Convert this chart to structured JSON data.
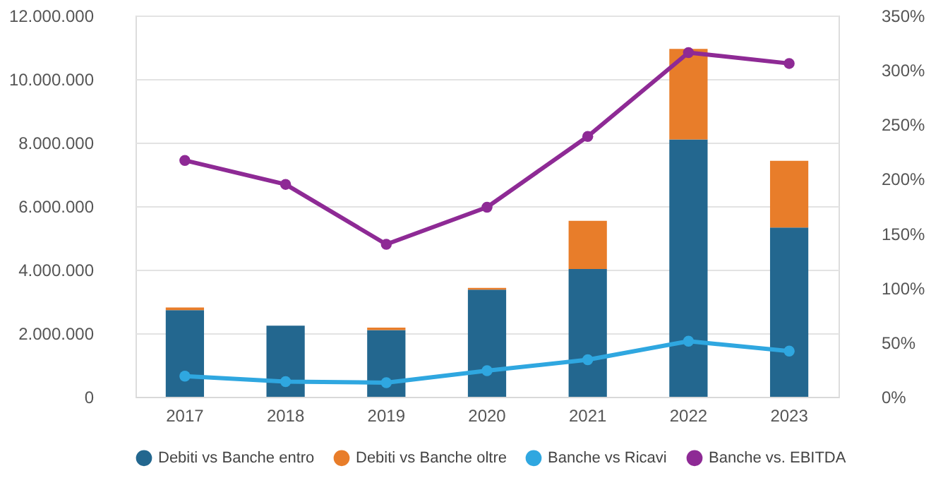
{
  "chart_data": {
    "type": "bar",
    "stacked": true,
    "categories": [
      "2017",
      "2018",
      "2019",
      "2020",
      "2021",
      "2022",
      "2023"
    ],
    "series": [
      {
        "name": "Debiti vs Banche entro",
        "color": "#23678f",
        "values": [
          2730000,
          2240000,
          2100000,
          3370000,
          4020000,
          8100000,
          5330000
        ]
      },
      {
        "name": "Debiti vs Banche oltre",
        "color": "#e87d2a",
        "values": [
          80000,
          0,
          80000,
          60000,
          1520000,
          2850000,
          2100000
        ]
      },
      {
        "name": "Banche vs Ricavi",
        "type": "line",
        "axis": "y2",
        "color": "#2fa7e0",
        "values": [
          19,
          14,
          13,
          24,
          34,
          51,
          42
        ]
      },
      {
        "name": "Banche vs. EBITDA",
        "type": "line",
        "axis": "y2",
        "color": "#8e2a95",
        "values": [
          217,
          195,
          140,
          174,
          239,
          316,
          306
        ]
      }
    ],
    "marker": "circle",
    "ylim": [
      0,
      12000000
    ],
    "yticks": [
      {
        "value": 0,
        "label": "0"
      },
      {
        "value": 2000000,
        "label": "2.000.000"
      },
      {
        "value": 4000000,
        "label": "4.000.000"
      },
      {
        "value": 6000000,
        "label": "6.000.000"
      },
      {
        "value": 8000000,
        "label": "8.000.000"
      },
      {
        "value": 10000000,
        "label": "10.000.000"
      },
      {
        "value": 12000000,
        "label": "12.000.000"
      }
    ],
    "y2lim": [
      0,
      350
    ],
    "y2ticks": [
      {
        "value": 0,
        "label": "0%"
      },
      {
        "value": 50,
        "label": "50%"
      },
      {
        "value": 100,
        "label": "100%"
      },
      {
        "value": 150,
        "label": "150%"
      },
      {
        "value": 200,
        "label": "200%"
      },
      {
        "value": 250,
        "label": "250%"
      },
      {
        "value": 300,
        "label": "300%"
      },
      {
        "value": 350,
        "label": "350%"
      }
    ],
    "grid": "y",
    "legend": "bottom"
  }
}
